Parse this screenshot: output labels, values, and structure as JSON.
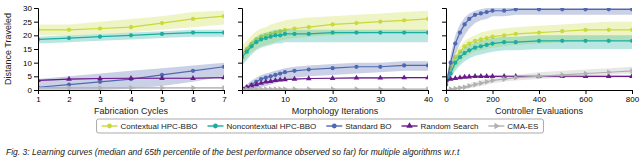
{
  "chart_data": [
    {
      "type": "line",
      "xlabel": "Fabrication Cycles",
      "ylabel": "Distance Traveled",
      "x": [
        1,
        2,
        3,
        4,
        5,
        6,
        7
      ],
      "xlim": [
        1,
        7
      ],
      "ylim": [
        0,
        30
      ],
      "xticks": [
        1,
        2,
        3,
        4,
        5,
        6,
        7
      ],
      "yticks": [
        0,
        5,
        10,
        15,
        20,
        25,
        30
      ],
      "grid": false,
      "legend": "bottom",
      "annotations": [
        "Fig. 3: Learning curves (median and 65th percentile of the best performance observed so far) for multiple algorithms w.r.t"
      ],
      "series": [
        {
          "name": "Contextual HPC-BBO",
          "color": "#c8d93a",
          "marker": "circle",
          "values": [
            22,
            22,
            22.5,
            23,
            24.5,
            26,
            27
          ],
          "upper": [
            24,
            24,
            25,
            26,
            27,
            28.5,
            29
          ],
          "lower": [
            20,
            20,
            20.5,
            21,
            22,
            23,
            24
          ]
        },
        {
          "name": "Noncontextual HPC-BBO",
          "color": "#1aada0",
          "marker": "circle",
          "values": [
            18.5,
            19,
            19.5,
            20,
            20.5,
            21,
            21
          ],
          "upper": [
            19.5,
            20,
            20.5,
            21,
            21.5,
            22,
            22
          ],
          "lower": [
            17,
            17.5,
            18,
            18.5,
            19,
            19.5,
            19.5
          ]
        },
        {
          "name": "Standard BO",
          "color": "#5068b0",
          "marker": "circle",
          "values": [
            1,
            2,
            3,
            4,
            5.5,
            7,
            8.5
          ],
          "upper": [
            4,
            5,
            6,
            7,
            8,
            9,
            10
          ],
          "lower": [
            0,
            0,
            0,
            0.5,
            1.5,
            3,
            5
          ]
        },
        {
          "name": "Random Search",
          "color": "#6a1a8a",
          "marker": "triangle-up",
          "values": [
            3.5,
            4,
            4.2,
            4.3,
            4.3,
            4.3,
            4.5
          ],
          "upper": [
            3.7,
            4.2,
            4.4,
            4.5,
            4.5,
            4.5,
            4.7
          ],
          "lower": [
            3.3,
            3.8,
            4.0,
            4.1,
            4.1,
            4.1,
            4.3
          ]
        },
        {
          "name": "CMA-ES",
          "color": "#b0b0b0",
          "marker": "triangle-right",
          "values": [
            0.8,
            0.8,
            0.8,
            0.8,
            0.8,
            0.8,
            0.8
          ],
          "upper": [
            1.1,
            1.1,
            1.1,
            1.1,
            1.1,
            1.1,
            1.1
          ],
          "lower": [
            0.5,
            0.5,
            0.5,
            0.5,
            0.5,
            0.5,
            0.5
          ]
        }
      ]
    },
    {
      "type": "line",
      "xlabel": "Morphology Iterations",
      "x": [
        1,
        2,
        3,
        4,
        5,
        6,
        7,
        8,
        9,
        10,
        12,
        15,
        20,
        25,
        30,
        35,
        40
      ],
      "xlim": [
        1,
        40
      ],
      "ylim": [
        0,
        30
      ],
      "xticks": [
        10,
        20,
        30,
        40
      ],
      "yticks": [
        0,
        5,
        10,
        15,
        20,
        25,
        30
      ],
      "tick_labels": "x",
      "grid": false,
      "series": [
        {
          "name": "Contextual HPC-BBO",
          "color": "#c8d93a",
          "marker": "circle",
          "values": [
            13,
            15,
            17,
            18.5,
            19.5,
            20,
            20.5,
            21,
            21.5,
            22,
            22.5,
            23,
            24,
            24.5,
            25,
            25.5,
            26
          ],
          "upper": [
            16,
            18,
            20,
            21.5,
            22.5,
            23,
            24,
            24.5,
            25,
            25.5,
            26,
            26.5,
            27,
            27.5,
            28,
            28.5,
            29
          ],
          "lower": [
            10,
            12,
            14,
            15,
            16,
            16.5,
            17,
            17.5,
            18,
            18.5,
            19,
            19.5,
            20,
            20.5,
            21,
            21,
            21
          ]
        },
        {
          "name": "Noncontextual HPC-BBO",
          "color": "#1aada0",
          "marker": "circle",
          "values": [
            12,
            14,
            16,
            17.5,
            18.5,
            19,
            19.5,
            20,
            20,
            20.5,
            20.5,
            20.5,
            21,
            21,
            21,
            21,
            21
          ],
          "upper": [
            14,
            16,
            18,
            19.5,
            20.5,
            21,
            21.5,
            22,
            22,
            22,
            22,
            22,
            22,
            22,
            22,
            22,
            22
          ],
          "lower": [
            9,
            11,
            13,
            14.5,
            15.5,
            16,
            16.5,
            17,
            17,
            17.5,
            17.5,
            17.5,
            17.5,
            17.5,
            17.5,
            17.5,
            17.5
          ]
        },
        {
          "name": "Standard BO",
          "color": "#5068b0",
          "marker": "circle",
          "values": [
            0.5,
            1,
            2,
            3,
            4,
            4.5,
            5,
            5.5,
            6,
            6.5,
            7,
            7.5,
            8,
            8.5,
            8.5,
            9,
            9
          ],
          "upper": [
            1,
            2,
            3.5,
            4.5,
            5.5,
            6,
            6.5,
            7,
            7.5,
            8,
            8.5,
            9,
            9.5,
            10,
            10,
            10.5,
            10.5
          ],
          "lower": [
            0,
            0,
            0,
            0.5,
            1,
            1.5,
            2,
            2.5,
            3,
            3.5,
            4.5,
            5,
            5.5,
            6,
            6.5,
            7,
            7
          ]
        },
        {
          "name": "Random Search",
          "color": "#6a1a8a",
          "marker": "triangle-up",
          "values": [
            0.5,
            1,
            1.5,
            2,
            2.5,
            3,
            3.2,
            3.5,
            3.7,
            3.8,
            4,
            4.2,
            4.3,
            4.4,
            4.4,
            4.5,
            4.5
          ],
          "upper": [
            0.7,
            1.2,
            1.7,
            2.2,
            2.7,
            3.2,
            3.4,
            3.7,
            3.9,
            4.0,
            4.2,
            4.4,
            4.5,
            4.6,
            4.6,
            4.7,
            4.7
          ],
          "lower": [
            0.3,
            0.8,
            1.3,
            1.8,
            2.3,
            2.8,
            3.0,
            3.3,
            3.5,
            3.6,
            3.8,
            4.0,
            4.1,
            4.2,
            4.2,
            4.3,
            4.3
          ]
        },
        {
          "name": "CMA-ES",
          "color": "#b0b0b0",
          "marker": "triangle-right",
          "values": [
            0.3,
            0.3,
            0.3,
            0.3,
            0.3,
            0.3,
            0.3,
            0.3,
            0.3,
            0.3,
            0.3,
            0.3,
            0.3,
            0.3,
            0.3,
            0.3,
            0.3
          ],
          "upper": [
            0.5,
            0.5,
            0.5,
            0.5,
            0.5,
            0.5,
            0.5,
            0.5,
            0.5,
            0.5,
            0.5,
            0.5,
            0.5,
            0.5,
            0.5,
            0.5,
            0.5
          ],
          "lower": [
            0.1,
            0.1,
            0.1,
            0.1,
            0.1,
            0.1,
            0.1,
            0.1,
            0.1,
            0.1,
            0.1,
            0.1,
            0.1,
            0.1,
            0.1,
            0.1,
            0.1
          ]
        }
      ]
    },
    {
      "type": "line",
      "xlabel": "Controller Evaluations",
      "x": [
        0,
        20,
        40,
        60,
        80,
        100,
        125,
        150,
        175,
        200,
        250,
        300,
        400,
        500,
        600,
        700,
        800
      ],
      "xlim": [
        0,
        800
      ],
      "ylim": [
        0,
        30
      ],
      "xticks": [
        0,
        200,
        400,
        600,
        800
      ],
      "yticks": [
        0,
        5,
        10,
        15,
        20,
        25,
        30
      ],
      "tick_labels": "x",
      "grid": false,
      "series": [
        {
          "name": "Contextual HPC-BBO",
          "color": "#c8d93a",
          "marker": "circle",
          "values": [
            3,
            8,
            12,
            14,
            16,
            17,
            18,
            18.5,
            19,
            19.5,
            20,
            20.5,
            21,
            21.5,
            22,
            22,
            22
          ],
          "upper": [
            4,
            10,
            14,
            16,
            18,
            19,
            20,
            21,
            21.5,
            22,
            22.5,
            23,
            23.5,
            24,
            24.5,
            25,
            25
          ],
          "lower": [
            2,
            5,
            8,
            10,
            12,
            13,
            14,
            14.5,
            15,
            15.5,
            16,
            16.5,
            17,
            17.5,
            18,
            18,
            18
          ]
        },
        {
          "name": "Noncontextual HPC-BBO",
          "color": "#1aada0",
          "marker": "circle",
          "values": [
            2,
            6,
            10,
            12,
            13.5,
            14.5,
            15.5,
            16,
            16.5,
            17,
            17.5,
            17.5,
            18,
            18,
            18,
            18,
            18
          ],
          "upper": [
            3,
            8,
            12,
            14,
            15.5,
            16.5,
            17.5,
            18,
            18.5,
            19,
            19.5,
            19.5,
            20,
            20,
            20,
            20,
            20
          ],
          "lower": [
            1,
            4,
            7,
            9,
            10.5,
            11.5,
            12.5,
            13,
            13.5,
            14,
            14.5,
            14.5,
            15,
            15,
            15,
            15,
            15
          ]
        },
        {
          "name": "Standard BO",
          "color": "#5068b0",
          "marker": "circle",
          "values": [
            2,
            10,
            17,
            21,
            24,
            26,
            27.5,
            28,
            28.5,
            29,
            29,
            29.5,
            29.5,
            29.5,
            29.5,
            29.5,
            29.5
          ],
          "upper": [
            3,
            13,
            20,
            24,
            26.5,
            28,
            29,
            29.5,
            30,
            30,
            30,
            30,
            30,
            30,
            30,
            30,
            30
          ],
          "lower": [
            1,
            7,
            13,
            17,
            20,
            22.5,
            24.5,
            25.5,
            26,
            27,
            27,
            27.5,
            27.5,
            27.5,
            27.5,
            27.5,
            27.5
          ]
        },
        {
          "name": "Random Search",
          "color": "#6a1a8a",
          "marker": "triangle-up",
          "values": [
            3.5,
            4,
            4.3,
            4.5,
            4.7,
            4.8,
            5,
            5,
            5,
            5,
            5,
            5,
            5,
            5,
            5,
            5,
            5
          ],
          "upper": [
            3.7,
            4.2,
            4.5,
            4.7,
            4.9,
            5.1,
            5.3,
            5.3,
            5.3,
            5.3,
            5.3,
            5.3,
            5.3,
            5.3,
            5.3,
            5.3,
            5.3
          ],
          "lower": [
            3.3,
            3.8,
            4.1,
            4.3,
            4.5,
            4.6,
            4.7,
            4.7,
            4.7,
            4.7,
            4.7,
            4.7,
            4.7,
            4.7,
            4.7,
            4.7,
            4.7
          ]
        },
        {
          "name": "CMA-ES",
          "color": "#b0b0b0",
          "marker": "triangle-right",
          "values": [
            0,
            0.3,
            0.5,
            0.8,
            1,
            1.5,
            2,
            2.5,
            3,
            3.5,
            4,
            4.5,
            5,
            5.5,
            6,
            6.5,
            7
          ],
          "upper": [
            0.1,
            0.6,
            1.0,
            1.4,
            1.8,
            2.3,
            3.0,
            3.5,
            4.0,
            4.5,
            5,
            5.5,
            6.5,
            7,
            7.5,
            8,
            8.5
          ],
          "lower": [
            0,
            0.1,
            0.2,
            0.3,
            0.4,
            0.7,
            1.0,
            1.5,
            2.0,
            2.5,
            3,
            3.5,
            4,
            4.5,
            5,
            5.5,
            6
          ]
        }
      ]
    }
  ]
}
